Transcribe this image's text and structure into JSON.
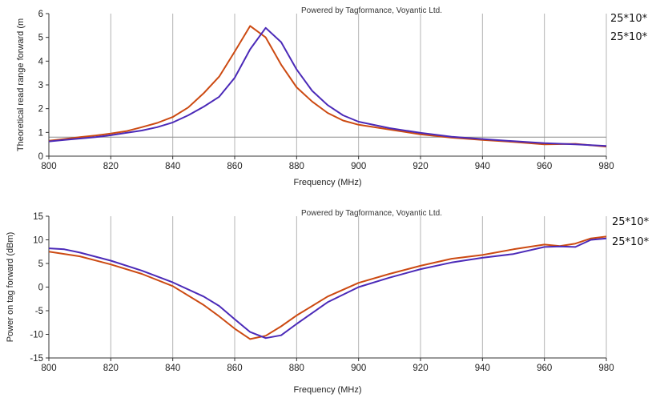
{
  "chart_data": [
    {
      "type": "line",
      "credit": "Powered by Tagformance, Voyantic Ltd.",
      "xlabel": "Frequency (MHz)",
      "ylabel": "Theoretical read range forward (m",
      "xlim": [
        800,
        980
      ],
      "ylim": [
        0,
        6
      ],
      "xticks": [
        800,
        820,
        840,
        860,
        880,
        900,
        920,
        940,
        960,
        980
      ],
      "yticks": [
        0,
        1,
        2,
        3,
        4,
        5,
        6
      ],
      "reference_line": 0.8,
      "grid": "vertical",
      "legend_position": "right",
      "series": [
        {
          "name": "25*10*",
          "color": "#cc4a12",
          "x": [
            800,
            805,
            810,
            815,
            820,
            825,
            830,
            835,
            840,
            845,
            850,
            855,
            860,
            865,
            870,
            875,
            880,
            885,
            890,
            895,
            900,
            910,
            920,
            930,
            940,
            950,
            960,
            970,
            980
          ],
          "y": [
            0.65,
            0.72,
            0.8,
            0.87,
            0.95,
            1.05,
            1.22,
            1.4,
            1.65,
            2.05,
            2.65,
            3.35,
            4.4,
            5.48,
            5.0,
            3.85,
            2.9,
            2.3,
            1.82,
            1.5,
            1.32,
            1.12,
            0.92,
            0.78,
            0.68,
            0.6,
            0.5,
            0.52,
            0.4
          ]
        },
        {
          "name": "25*10*",
          "color": "#4b2ab8",
          "x": [
            800,
            805,
            810,
            815,
            820,
            825,
            830,
            835,
            840,
            845,
            850,
            855,
            860,
            865,
            870,
            875,
            880,
            885,
            890,
            895,
            900,
            910,
            920,
            930,
            940,
            950,
            960,
            970,
            980
          ],
          "y": [
            0.62,
            0.68,
            0.74,
            0.8,
            0.88,
            0.98,
            1.08,
            1.22,
            1.42,
            1.72,
            2.08,
            2.5,
            3.3,
            4.5,
            5.4,
            4.8,
            3.65,
            2.75,
            2.15,
            1.72,
            1.45,
            1.18,
            0.98,
            0.82,
            0.72,
            0.63,
            0.55,
            0.5,
            0.43
          ]
        }
      ]
    },
    {
      "type": "line",
      "credit": "Powered by Tagformance, Voyantic Ltd.",
      "xlabel": "Frequency (MHz)",
      "ylabel": "Power on tag forward (dBm)",
      "xlim": [
        800,
        980
      ],
      "ylim": [
        -15,
        15
      ],
      "xticks": [
        800,
        820,
        840,
        860,
        880,
        900,
        920,
        940,
        960,
        980
      ],
      "yticks": [
        -15,
        -10,
        -5,
        0,
        5,
        10,
        15
      ],
      "grid": "vertical",
      "legend_position": "right",
      "series": [
        {
          "name": "25*10*",
          "color": "#cc4a12",
          "x": [
            800,
            810,
            820,
            830,
            840,
            850,
            855,
            860,
            865,
            870,
            875,
            880,
            885,
            890,
            900,
            910,
            920,
            930,
            940,
            950,
            960,
            965,
            970,
            975,
            980
          ],
          "y": [
            7.5,
            6.5,
            4.8,
            2.8,
            0.2,
            -3.8,
            -6.2,
            -8.8,
            -11.0,
            -10.3,
            -8.3,
            -6.0,
            -4.0,
            -2.0,
            0.9,
            2.8,
            4.5,
            6.0,
            6.8,
            8.0,
            9.0,
            8.7,
            9.2,
            10.3,
            10.7
          ]
        },
        {
          "name": "25*10*",
          "color": "#4b2ab8",
          "x": [
            800,
            805,
            810,
            820,
            830,
            840,
            850,
            855,
            860,
            865,
            870,
            875,
            880,
            885,
            890,
            900,
            910,
            920,
            930,
            940,
            950,
            960,
            965,
            970,
            975,
            980
          ],
          "y": [
            8.2,
            8.0,
            7.3,
            5.6,
            3.5,
            1.0,
            -2.0,
            -4.0,
            -6.8,
            -9.5,
            -10.8,
            -10.2,
            -7.8,
            -5.5,
            -3.2,
            0.0,
            2.0,
            3.8,
            5.2,
            6.2,
            7.0,
            8.5,
            8.6,
            8.5,
            10.0,
            10.3
          ]
        }
      ]
    }
  ]
}
